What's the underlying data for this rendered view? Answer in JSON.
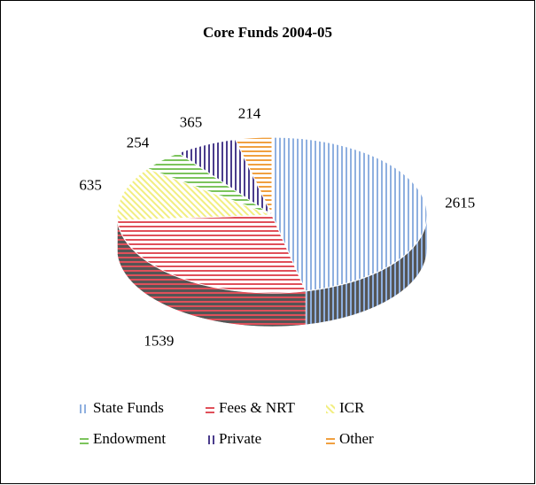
{
  "chart_data": {
    "type": "pie",
    "title": "Core Funds 2004-05",
    "categories": [
      "State Funds",
      "Fees & NRT",
      "ICR",
      "Endowment",
      "Private",
      "Other"
    ],
    "values": [
      2615,
      1539,
      635,
      254,
      365,
      214
    ],
    "colors": [
      "#8fb0e0",
      "#e0505a",
      "#f2ee80",
      "#7cc45c",
      "#4a3c8c",
      "#f0a040"
    ],
    "hatch": [
      "vertical",
      "horizontal",
      "diagonal",
      "horizontal",
      "vertical",
      "horizontal"
    ],
    "legend": "bottom"
  }
}
